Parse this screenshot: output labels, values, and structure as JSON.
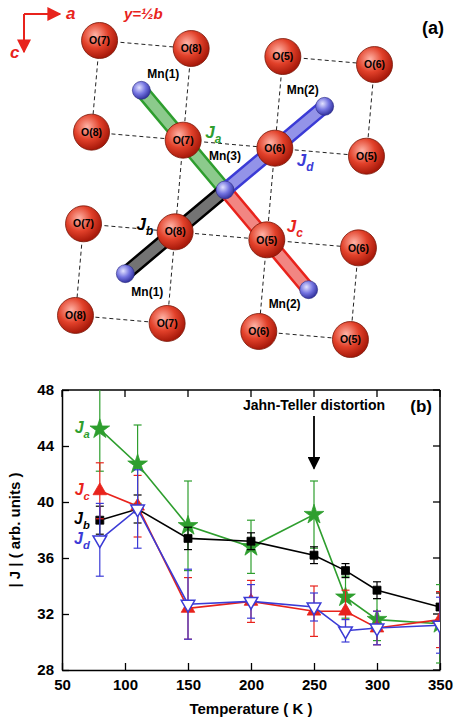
{
  "diagram": {
    "panel_label": "(a)",
    "axes": {
      "horizontal": "a",
      "vertical": "c",
      "plane": "y=½b"
    },
    "oxygen_atoms": [
      "O(7)",
      "O(8)",
      "O(5)",
      "O(6)",
      "O(8)",
      "O(7)",
      "O(6)",
      "O(5)",
      "O(7)",
      "O(8)",
      "O(5)",
      "O(6)",
      "O(8)",
      "O(7)",
      "O(6)",
      "O(5)"
    ],
    "manganese_atoms": [
      "Mn(1)",
      "Mn(2)",
      "Mn(3)",
      "Mn(1)",
      "Mn(2)"
    ],
    "bonds": [
      {
        "label": "Ja",
        "color": "#2e9e2e"
      },
      {
        "label": "Jb",
        "color": "#000000"
      },
      {
        "label": "Jc",
        "color": "#e8231c"
      },
      {
        "label": "Jd",
        "color": "#3b3bd6"
      }
    ]
  },
  "chart_data": {
    "type": "line",
    "panel_label": "(b)",
    "x_label": "Temperature ( K )",
    "y_label": "| J | ( arb. units )",
    "x": [
      80,
      110,
      150,
      200,
      250,
      275,
      300,
      350
    ],
    "xlim": [
      50,
      350
    ],
    "xticks": [
      50,
      100,
      150,
      200,
      250,
      300,
      350
    ],
    "ylim": [
      28,
      48
    ],
    "yticks": [
      28,
      32,
      36,
      40,
      44,
      48
    ],
    "series": [
      {
        "name": "Ja",
        "color": "#2e9e2e",
        "marker": "star",
        "line_style": "solid",
        "values": [
          45.2,
          42.7,
          38.3,
          36.8,
          39.1,
          33.2,
          31.6,
          31.3
        ],
        "errors": [
          3.0,
          2.8,
          3.2,
          1.9,
          2.4,
          1.5,
          1.5,
          2.8
        ]
      },
      {
        "name": "Jb",
        "color": "#000000",
        "marker": "square",
        "line_style": "solid",
        "values": [
          38.7,
          39.5,
          37.4,
          37.2,
          36.2,
          35.1,
          33.7,
          32.5
        ],
        "errors": [
          1.0,
          1.0,
          0.8,
          0.6,
          0.6,
          0.5,
          0.6,
          1.0
        ]
      },
      {
        "name": "Jc",
        "color": "#e8231c",
        "marker": "triangle-up",
        "line_style": "solid",
        "values": [
          40.8,
          39.7,
          32.4,
          32.9,
          32.2,
          32.2,
          31.0,
          31.6
        ],
        "errors": [
          2.0,
          2.2,
          2.2,
          1.5,
          1.8,
          1.5,
          1.2,
          2.0
        ]
      },
      {
        "name": "Jd",
        "color": "#3b3bd6",
        "marker": "triangle-down-open",
        "line_style": "solid",
        "values": [
          37.3,
          39.5,
          32.7,
          32.9,
          32.5,
          30.8,
          31.0,
          31.2
        ],
        "errors": [
          2.6,
          2.8,
          2.5,
          1.2,
          1.0,
          0.8,
          1.2,
          2.0
        ]
      }
    ],
    "annotations": [
      {
        "text": "Jahn-Teller distortion",
        "x": 250
      }
    ]
  }
}
